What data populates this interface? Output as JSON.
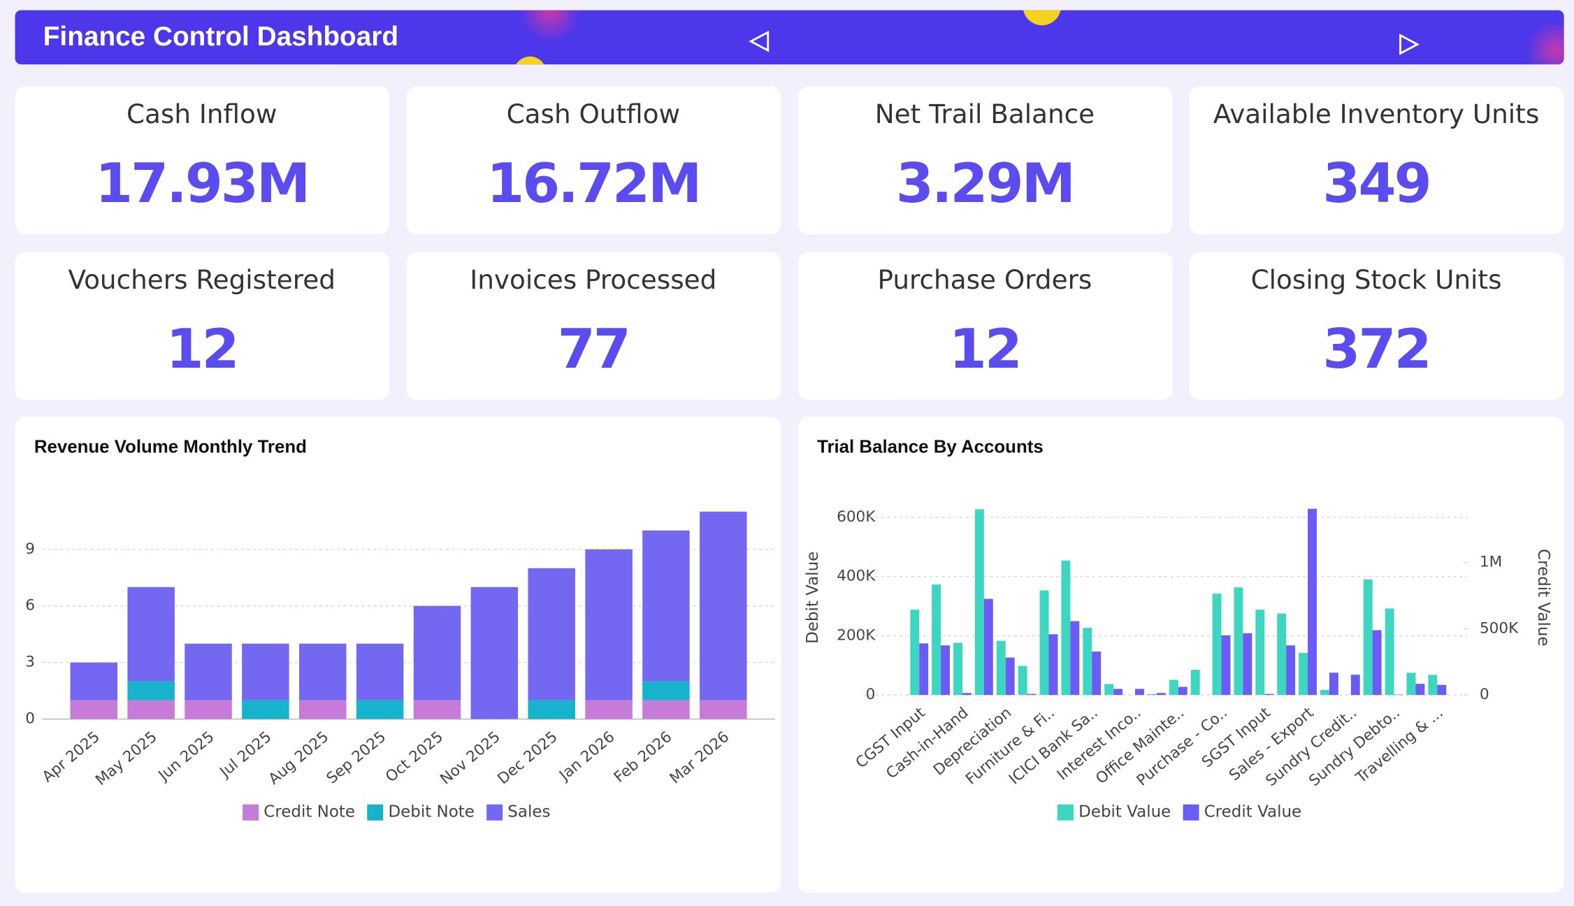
{
  "header": {
    "title": "Finance Control Dashboard"
  },
  "kpis": [
    {
      "title": "Cash Inflow",
      "value": "17.93M"
    },
    {
      "title": "Cash Outflow",
      "value": "16.72M"
    },
    {
      "title": "Net Trail Balance",
      "value": "3.29M"
    },
    {
      "title": "Available Inventory Units",
      "value": "349"
    },
    {
      "title": "Vouchers Registered",
      "value": "12"
    },
    {
      "title": "Invoices Processed",
      "value": "77"
    },
    {
      "title": "Purchase Orders",
      "value": "12"
    },
    {
      "title": "Closing Stock Units",
      "value": "372"
    }
  ],
  "chart_data": [
    {
      "type": "bar",
      "stacked": true,
      "title": "Revenue Volume Monthly Trend",
      "categories": [
        "Apr 2025",
        "May 2025",
        "Jun 2025",
        "Jul 2025",
        "Aug 2025",
        "Sep 2025",
        "Oct 2025",
        "Nov 2025",
        "Dec 2025",
        "Jan 2026",
        "Feb 2026",
        "Mar 2026"
      ],
      "series": [
        {
          "name": "Credit Note",
          "color": "#c67bd8",
          "values": [
            1,
            1,
            1,
            0,
            1,
            0,
            1,
            0,
            0,
            1,
            1,
            1
          ]
        },
        {
          "name": "Debit Note",
          "color": "#17b3cc",
          "values": [
            0,
            1,
            0,
            1,
            0,
            1,
            0,
            0,
            1,
            0,
            1,
            0
          ]
        },
        {
          "name": "Sales",
          "color": "#7468f2",
          "values": [
            2,
            5,
            3,
            3,
            3,
            3,
            5,
            7,
            7,
            8,
            8,
            10
          ]
        }
      ],
      "ylim": [
        0,
        12
      ],
      "yticks": [
        0,
        3,
        6,
        9
      ],
      "grid": true,
      "legend": "bottom"
    },
    {
      "type": "bar",
      "stacked": false,
      "title": "Trial Balance By Accounts",
      "categories": [
        "CGST Input",
        null,
        "Cash-in-Hand",
        null,
        "Depreciation",
        null,
        "Furniture & Fi..",
        null,
        "ICICI Bank Sa..",
        null,
        "Interest Inco..",
        null,
        "Office Mainte..",
        null,
        "Purchase - Co..",
        null,
        "SGST Input",
        null,
        "Sales - Export",
        null,
        "Sundry Credit..",
        null,
        "Sundry Debto..",
        null,
        "Travelling & ..."
      ],
      "y_label": "Debit Value",
      "y2_label": "Credit Value",
      "series": [
        {
          "name": "Debit Value",
          "color": "#3dd6c0",
          "values": [
            288000,
            373000,
            176000,
            627000,
            183000,
            98000,
            353000,
            454000,
            227000,
            37000,
            0,
            3000,
            51000,
            85000,
            342000,
            363000,
            288000,
            275000,
            142000,
            17000,
            0,
            390000,
            292000,
            75000,
            68000
          ]
        },
        {
          "name": "Credit Value",
          "color": "#6b5cf6",
          "axis": "y2",
          "values": [
            389000,
            374000,
            15000,
            725000,
            282000,
            8000,
            458000,
            557000,
            328000,
            46000,
            46000,
            15000,
            61000,
            0,
            450000,
            466000,
            8000,
            374000,
            1405000,
            168000,
            153000,
            489000,
            3000,
            84000,
            76000
          ]
        }
      ],
      "ylim": [
        0,
        640000
      ],
      "yticks": [
        0,
        {
          "value": 200000,
          "label": "200K"
        },
        {
          "value": 400000,
          "label": "400K"
        },
        {
          "value": 600000,
          "label": "600K"
        }
      ],
      "y2lim": [
        0,
        1430000
      ],
      "y2ticks": [
        0,
        {
          "value": 500000,
          "label": "500K"
        },
        {
          "value": 1000000,
          "label": "1M"
        }
      ],
      "grid": true,
      "legend": "bottom"
    }
  ]
}
